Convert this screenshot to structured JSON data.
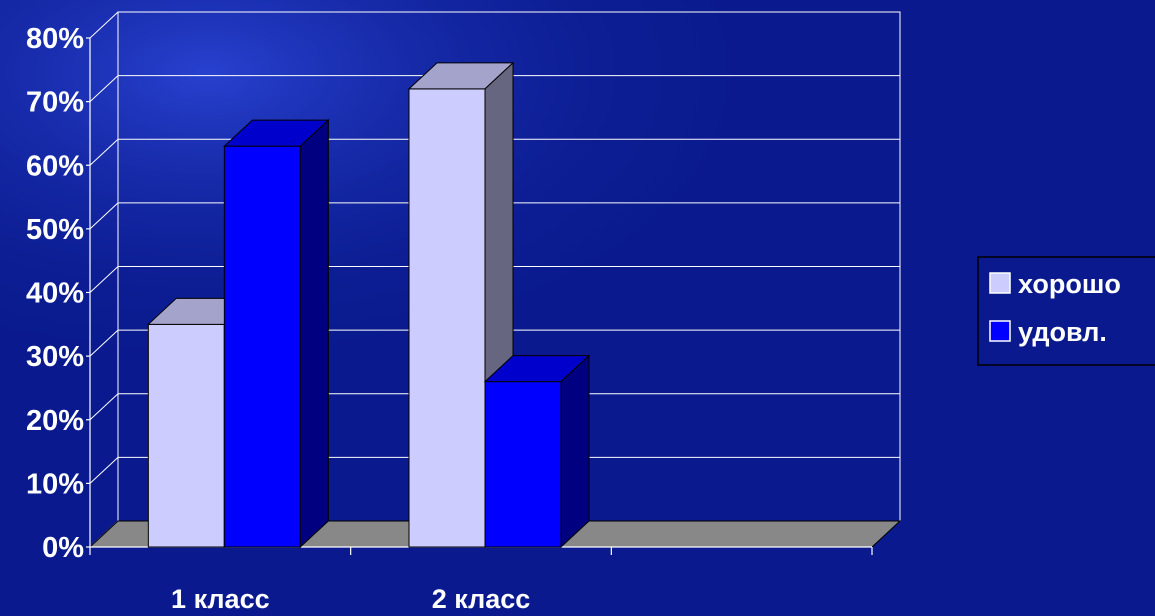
{
  "chart_data": {
    "type": "bar",
    "style": "3d-clustered-column",
    "categories": [
      "1 класс",
      "2 класс",
      ""
    ],
    "series": [
      {
        "name": "хорошо",
        "values": [
          35,
          72,
          null
        ],
        "color": "#ccccff"
      },
      {
        "name": "удовл.",
        "values": [
          63,
          26,
          null
        ],
        "color": "#0000ff"
      }
    ],
    "y_ticks": [
      "0%",
      "10%",
      "20%",
      "30%",
      "40%",
      "50%",
      "60%",
      "70%",
      "80%"
    ],
    "ylim": [
      0,
      80
    ],
    "y_unit": "%",
    "grid": true,
    "legend_position": "right",
    "colors": {
      "background": "#0a1a8e",
      "floor": "#888888",
      "gridline": "#ffffff",
      "text": "#ffffff"
    }
  }
}
